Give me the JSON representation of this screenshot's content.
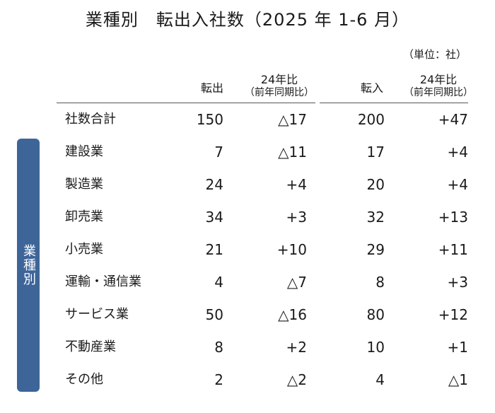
{
  "title": "業種別　転出入社数（2025 年 1-6 月）",
  "unit": "（単位：社）",
  "headers": {
    "out": "転出",
    "out_cmp": "24年比",
    "out_cmp_sub": "（前年同期比）",
    "in": "転入",
    "in_cmp": "24年比",
    "in_cmp_sub": "（前年同期比）"
  },
  "sidebar_label": "業種別",
  "rows": [
    {
      "label": "社数合計",
      "out": "150",
      "out_cmp": "△17",
      "in": "200",
      "in_cmp": "+47"
    },
    {
      "label": "建設業",
      "out": "7",
      "out_cmp": "△11",
      "in": "17",
      "in_cmp": "+4"
    },
    {
      "label": "製造業",
      "out": "24",
      "out_cmp": "+4",
      "in": "20",
      "in_cmp": "+4"
    },
    {
      "label": "卸売業",
      "out": "34",
      "out_cmp": "+3",
      "in": "32",
      "in_cmp": "+13"
    },
    {
      "label": "小売業",
      "out": "21",
      "out_cmp": "+10",
      "in": "29",
      "in_cmp": "+11"
    },
    {
      "label": "運輸・通信業",
      "out": "4",
      "out_cmp": "△7",
      "in": "8",
      "in_cmp": "+3"
    },
    {
      "label": "サービス業",
      "out": "50",
      "out_cmp": "△16",
      "in": "80",
      "in_cmp": "+12"
    },
    {
      "label": "不動産業",
      "out": "8",
      "out_cmp": "+2",
      "in": "10",
      "in_cmp": "+1"
    },
    {
      "label": "その他",
      "out": "2",
      "out_cmp": "△2",
      "in": "4",
      "in_cmp": "△1"
    }
  ]
}
